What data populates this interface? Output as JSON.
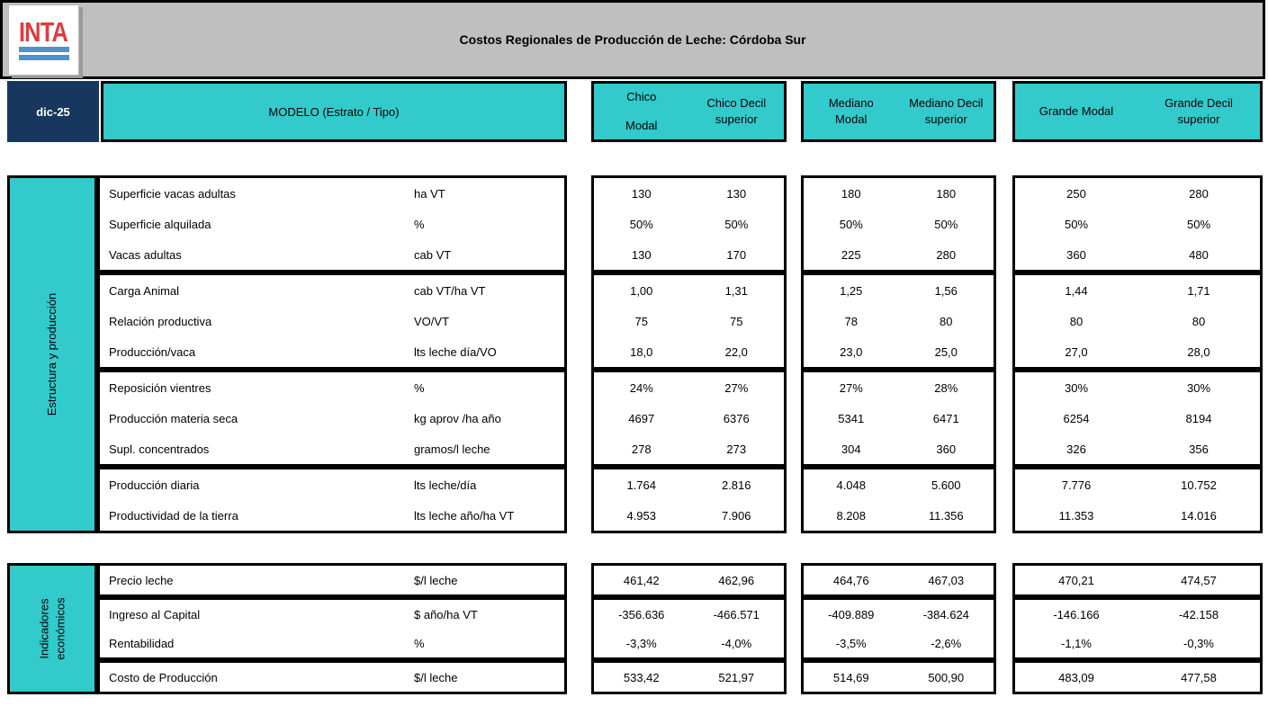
{
  "colors": {
    "teal": "#33cacc",
    "navy": "#17375e",
    "gray": "#bfbfbf",
    "red": "#e03a3e",
    "blue": "#4f93c9"
  },
  "header": {
    "logo_text": "INTA",
    "title": "Costos Regionales de Producción de Leche: Córdoba Sur",
    "date": "dic-25",
    "model_label": "MODELO (Estrato / Tipo)",
    "groups": [
      {
        "id": "chico",
        "cols": [
          [
            "Chico",
            "Modal"
          ],
          [
            "Chico Decil",
            "superior"
          ]
        ]
      },
      {
        "id": "mediano",
        "cols": [
          [
            "Mediano",
            "Modal"
          ],
          [
            "Mediano Decil",
            "superior"
          ]
        ]
      },
      {
        "id": "grande",
        "cols": [
          [
            "Grande Modal"
          ],
          [
            "Grande Decil",
            "superior"
          ]
        ]
      }
    ]
  },
  "columns": [
    "Chico Modal",
    "Chico Decil superior",
    "Mediano Modal",
    "Mediano Decil superior",
    "Grande Modal",
    "Grande Decil superior"
  ],
  "sections": [
    {
      "id": "estructura",
      "title_lines": [
        "Estructura y producción"
      ],
      "blocks": [
        {
          "rows": [
            {
              "label": "Superficie vacas adultas",
              "unit": "ha VT",
              "values": [
                "130",
                "130",
                "180",
                "180",
                "250",
                "280"
              ]
            },
            {
              "label": "Superficie alquilada",
              "unit": "%",
              "values": [
                "50%",
                "50%",
                "50%",
                "50%",
                "50%",
                "50%"
              ]
            },
            {
              "label": "Vacas adultas",
              "unit": "cab VT",
              "values": [
                "130",
                "170",
                "225",
                "280",
                "360",
                "480"
              ]
            }
          ]
        },
        {
          "rows": [
            {
              "label": "Carga Animal",
              "unit": "cab VT/ha VT",
              "values": [
                "1,00",
                "1,31",
                "1,25",
                "1,56",
                "1,44",
                "1,71"
              ]
            },
            {
              "label": "Relación productiva",
              "unit": "VO/VT",
              "values": [
                "75",
                "75",
                "78",
                "80",
                "80",
                "80"
              ]
            },
            {
              "label": "Producción/vaca",
              "unit": "lts leche día/VO",
              "values": [
                "18,0",
                "22,0",
                "23,0",
                "25,0",
                "27,0",
                "28,0"
              ]
            }
          ]
        },
        {
          "rows": [
            {
              "label": "Reposición vientres",
              "unit": "%",
              "values": [
                "24%",
                "27%",
                "27%",
                "28%",
                "30%",
                "30%"
              ]
            },
            {
              "label": "Producción materia seca",
              "unit": "kg aprov /ha año",
              "values": [
                "4697",
                "6376",
                "5341",
                "6471",
                "6254",
                "8194"
              ]
            },
            {
              "label": "Supl. concentrados",
              "unit": "gramos/l leche",
              "values": [
                "278",
                "273",
                "304",
                "360",
                "326",
                "356"
              ]
            }
          ]
        },
        {
          "rows": [
            {
              "label": "Producción diaria",
              "unit": "lts leche/día",
              "values": [
                "1.764",
                "2.816",
                "4.048",
                "5.600",
                "7.776",
                "10.752"
              ]
            },
            {
              "label": "Productividad de la tierra",
              "unit": "lts leche año/ha VT",
              "values": [
                "4.953",
                "7.906",
                "8.208",
                "11.356",
                "11.353",
                "14.016"
              ]
            }
          ]
        }
      ]
    },
    {
      "id": "indicadores",
      "title_lines": [
        "Indicadores",
        "económicos"
      ],
      "blocks": [
        {
          "rows": [
            {
              "label": "Precio leche",
              "unit": "$/l leche",
              "values": [
                "461,42",
                "462,96",
                "464,76",
                "467,03",
                "470,21",
                "474,57"
              ]
            }
          ]
        },
        {
          "rows": [
            {
              "label": "Ingreso al Capital",
              "unit": "$ año/ha VT",
              "values": [
                "-356.636",
                "-466.571",
                "-409.889",
                "-384.624",
                "-146.166",
                "-42.158"
              ]
            },
            {
              "label": "Rentabilidad",
              "unit": "%",
              "values": [
                "-3,3%",
                "-4,0%",
                "-3,5%",
                "-2,6%",
                "-1,1%",
                "-0,3%"
              ]
            }
          ]
        },
        {
          "rows": [
            {
              "label": "Costo de Producción",
              "unit": "$/l leche",
              "values": [
                "533,42",
                "521,97",
                "514,69",
                "500,90",
                "483,09",
                "477,58"
              ]
            }
          ]
        }
      ]
    }
  ]
}
